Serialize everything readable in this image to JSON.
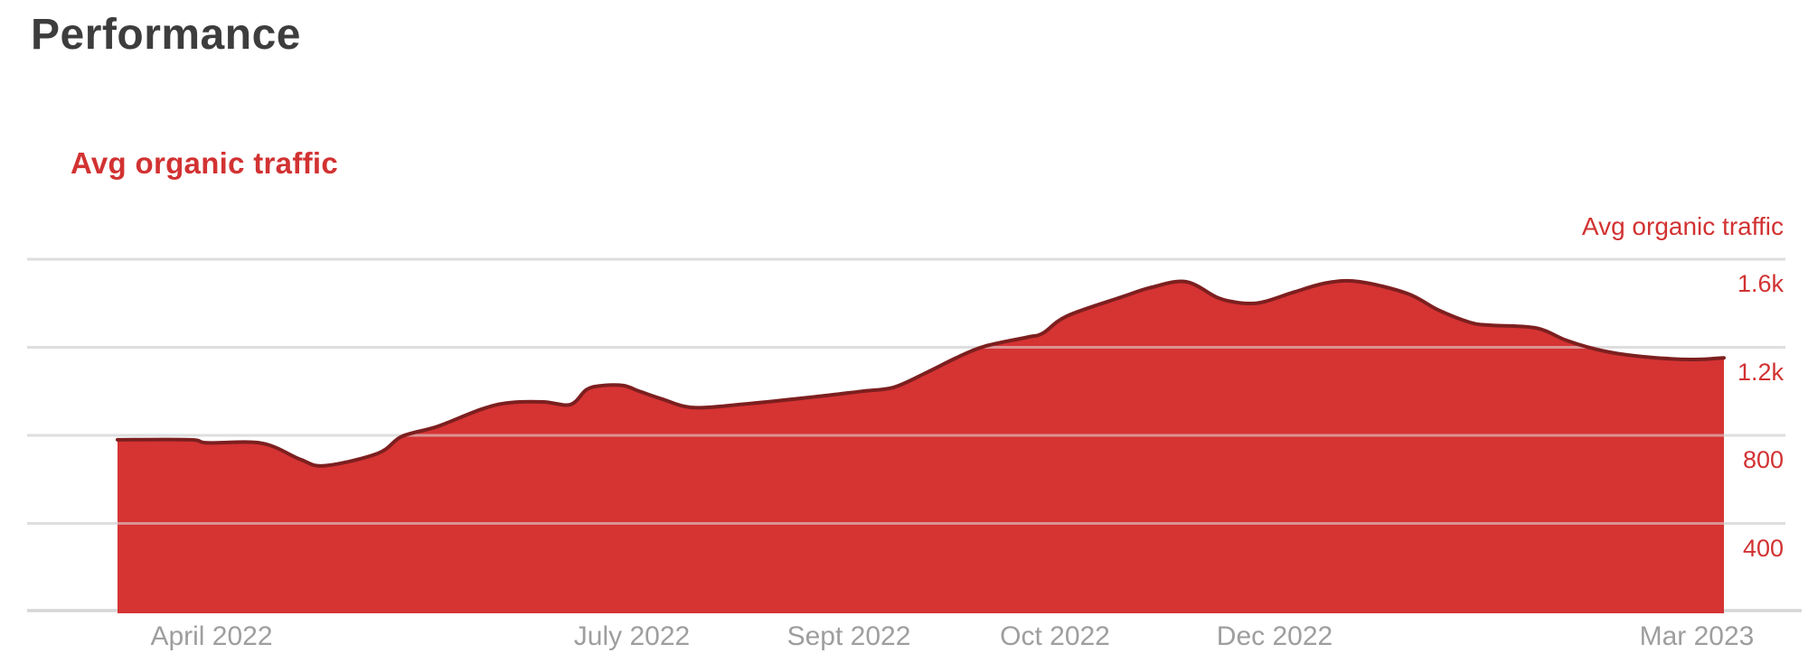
{
  "page": {
    "title": "Performance"
  },
  "chart": {
    "heading": "Avg organic traffic",
    "y_axis_title": "Avg organic traffic",
    "colors": {
      "accent": "#d23232",
      "area_fill": "#d63333",
      "area_line": "#7d1f1f",
      "grid": "#dedede",
      "grid_over_area": "#e0e0e0",
      "axis_line": "#d6d6d6",
      "title_text": "#3d3d3d",
      "x_label": "#9e9e9e"
    }
  },
  "chart_data": {
    "type": "area",
    "title": "Avg organic traffic",
    "series_name": "Avg organic traffic",
    "x_domain": [
      "Mar 2022",
      "Mar 2023"
    ],
    "ylim": [
      0,
      1700
    ],
    "y_gridline_step": 400,
    "grid": true,
    "legend_position": "top-right",
    "y_ticks": [
      {
        "label": "1.6k",
        "value": 1600
      },
      {
        "label": "1.2k",
        "value": 1200
      },
      {
        "label": "800",
        "value": 800
      },
      {
        "label": "400",
        "value": 400
      }
    ],
    "x_ticks": [
      {
        "label": "April 2022",
        "f": 0.0585
      },
      {
        "label": "July 2022",
        "f": 0.3202
      },
      {
        "label": "Sept 2022",
        "f": 0.4552
      },
      {
        "label": "Oct 2022",
        "f": 0.5836
      },
      {
        "label": "Dec 2022",
        "f": 0.7203
      },
      {
        "label": "Mar 2023",
        "f": 0.9831
      }
    ],
    "series": [
      {
        "name": "Avg organic traffic",
        "points": [
          [
            0.0,
            780
          ],
          [
            0.045,
            780
          ],
          [
            0.056,
            766
          ],
          [
            0.09,
            764
          ],
          [
            0.114,
            690
          ],
          [
            0.129,
            662
          ],
          [
            0.162,
            718
          ],
          [
            0.177,
            795
          ],
          [
            0.199,
            840
          ],
          [
            0.227,
            920
          ],
          [
            0.244,
            948
          ],
          [
            0.265,
            952
          ],
          [
            0.282,
            940
          ],
          [
            0.292,
            1008
          ],
          [
            0.302,
            1026
          ],
          [
            0.315,
            1026
          ],
          [
            0.325,
            1000
          ],
          [
            0.339,
            965
          ],
          [
            0.359,
            926
          ],
          [
            0.394,
            945
          ],
          [
            0.434,
            975
          ],
          [
            0.463,
            1000
          ],
          [
            0.483,
            1018
          ],
          [
            0.503,
            1083
          ],
          [
            0.523,
            1155
          ],
          [
            0.54,
            1205
          ],
          [
            0.566,
            1245
          ],
          [
            0.576,
            1264
          ],
          [
            0.591,
            1342
          ],
          [
            0.625,
            1428
          ],
          [
            0.644,
            1473
          ],
          [
            0.665,
            1498
          ],
          [
            0.684,
            1428
          ],
          [
            0.694,
            1407
          ],
          [
            0.704,
            1399
          ],
          [
            0.714,
            1407
          ],
          [
            0.733,
            1452
          ],
          [
            0.753,
            1493
          ],
          [
            0.773,
            1498
          ],
          [
            0.803,
            1444
          ],
          [
            0.822,
            1370
          ],
          [
            0.842,
            1313
          ],
          [
            0.855,
            1300
          ],
          [
            0.883,
            1288
          ],
          [
            0.902,
            1231
          ],
          [
            0.921,
            1190
          ],
          [
            0.94,
            1165
          ],
          [
            0.968,
            1147
          ],
          [
            0.985,
            1145
          ],
          [
            1.0,
            1152
          ]
        ]
      }
    ]
  }
}
